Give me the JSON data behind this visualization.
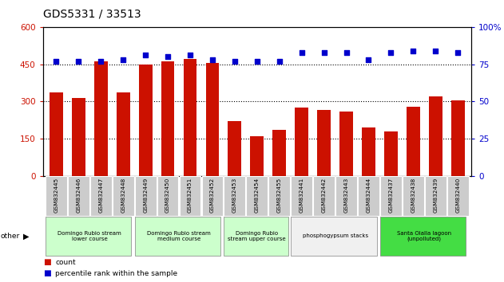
{
  "title": "GDS5331 / 33513",
  "samples": [
    "GSM832445",
    "GSM832446",
    "GSM832447",
    "GSM832448",
    "GSM832449",
    "GSM832450",
    "GSM832451",
    "GSM832452",
    "GSM832453",
    "GSM832454",
    "GSM832455",
    "GSM832441",
    "GSM832442",
    "GSM832443",
    "GSM832444",
    "GSM832437",
    "GSM832438",
    "GSM832439",
    "GSM832440"
  ],
  "counts": [
    335,
    315,
    460,
    335,
    450,
    460,
    470,
    455,
    220,
    160,
    185,
    275,
    265,
    260,
    195,
    180,
    280,
    320,
    305
  ],
  "percentiles": [
    77,
    77,
    77,
    78,
    81,
    80,
    81,
    78,
    77,
    77,
    77,
    83,
    83,
    83,
    78,
    83,
    84,
    84,
    83
  ],
  "bar_color": "#cc1100",
  "dot_color": "#0000cc",
  "ylim_left": [
    0,
    600
  ],
  "ylim_right": [
    0,
    100
  ],
  "yticks_left": [
    0,
    150,
    300,
    450,
    600
  ],
  "yticks_right": [
    0,
    25,
    50,
    75,
    100
  ],
  "groups": [
    {
      "label": "Domingo Rubio stream\nlower course",
      "start": 0,
      "end": 3,
      "color": "#ccffcc"
    },
    {
      "label": "Domingo Rubio stream\nmedium course",
      "start": 4,
      "end": 7,
      "color": "#ccffcc"
    },
    {
      "label": "Domingo Rubio\nstream upper course",
      "start": 8,
      "end": 10,
      "color": "#ccffcc"
    },
    {
      "label": "phosphogypsum stacks",
      "start": 11,
      "end": 14,
      "color": "#f0f0f0"
    },
    {
      "label": "Santa Olalla lagoon\n(unpolluted)",
      "start": 15,
      "end": 18,
      "color": "#44dd44"
    }
  ],
  "legend_count_label": "count",
  "legend_pct_label": "percentile rank within the sample",
  "other_label": "other",
  "bg_color": "#ffffff",
  "tick_label_bg": "#cccccc",
  "grid_color": "#000000"
}
